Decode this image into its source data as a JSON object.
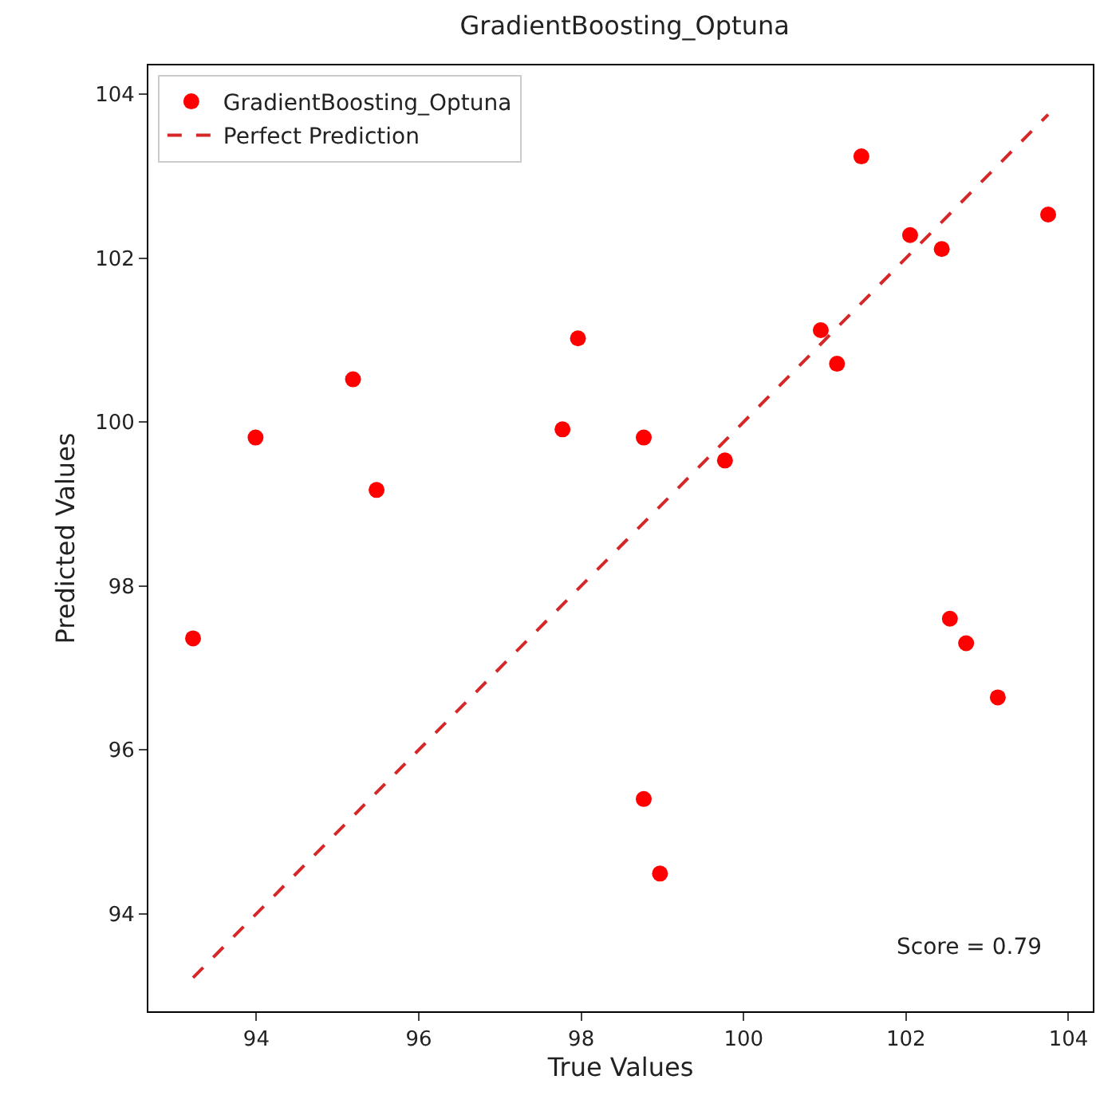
{
  "chart_data": {
    "type": "scatter",
    "title": "GradientBoosting_Optuna",
    "xlabel": "True Values",
    "ylabel": "Predicted Values",
    "series": [
      {
        "type": "scatter",
        "name": "GradientBoosting_Optuna",
        "color": "#ff0000",
        "marker": "circle",
        "x": [
          93.22,
          93.99,
          95.19,
          95.48,
          97.77,
          97.96,
          98.77,
          98.77,
          98.97,
          99.77,
          100.95,
          101.15,
          101.45,
          102.05,
          102.44,
          102.54,
          102.74,
          103.13,
          103.75
        ],
        "values": [
          97.36,
          99.81,
          100.52,
          99.17,
          99.91,
          101.02,
          99.81,
          95.4,
          94.49,
          99.53,
          101.12,
          100.71,
          103.24,
          102.28,
          102.11,
          97.6,
          97.3,
          96.64,
          102.53
        ]
      },
      {
        "type": "line",
        "name": "Perfect Prediction",
        "color": "#d62728",
        "line_style": "dashed",
        "marker": "none",
        "x": [
          93.22,
          103.75
        ],
        "values": [
          93.22,
          103.75
        ]
      }
    ],
    "annotations": [
      "Score = 0.79"
    ],
    "xlim": [
      92.67,
      104.3
    ],
    "xticks": [
      94,
      96,
      98,
      100,
      102,
      104
    ],
    "ylim": [
      92.81,
      104.35
    ],
    "yticks": [
      94,
      96,
      98,
      100,
      102,
      104
    ],
    "grid": false,
    "legend": "top left"
  }
}
